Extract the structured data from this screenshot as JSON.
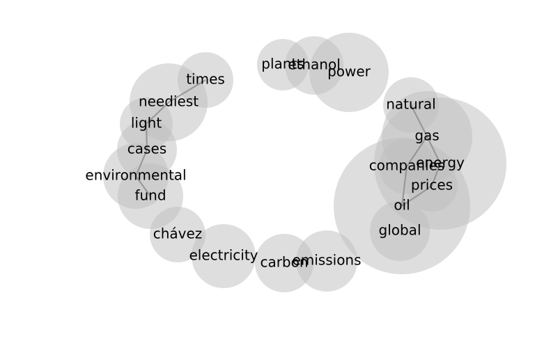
{
  "chart_data": {
    "type": "bubble-network",
    "nodes": [
      {
        "id": "n1",
        "label": "times"
      },
      {
        "id": "n2",
        "label": "neediest"
      },
      {
        "id": "n3",
        "label": "light"
      },
      {
        "id": "n4",
        "label": "cases"
      },
      {
        "id": "n5",
        "label": "environmental"
      },
      {
        "id": "n6",
        "label": "fund"
      },
      {
        "id": "n7",
        "label": "chávez"
      },
      {
        "id": "n8",
        "label": "electricity"
      },
      {
        "id": "n9",
        "label": "carbon"
      },
      {
        "id": "n10",
        "label": "emissions"
      },
      {
        "id": "n11",
        "label": "plants"
      },
      {
        "id": "n12",
        "label": "ethanol"
      },
      {
        "id": "n13",
        "label": "power"
      },
      {
        "id": "n14",
        "label": "natural"
      },
      {
        "id": "n15",
        "label": "gas"
      },
      {
        "id": "n16",
        "label": "energy"
      },
      {
        "id": "n17",
        "label": "companies"
      },
      {
        "id": "n18",
        "label": "prices"
      },
      {
        "id": "n19",
        "label": "oil"
      },
      {
        "id": "n20",
        "label": "global"
      }
    ],
    "edges": [
      [
        "n1",
        "n2"
      ],
      [
        "n2",
        "n3"
      ],
      [
        "n3",
        "n4"
      ],
      [
        "n4",
        "n5"
      ],
      [
        "n5",
        "n6"
      ],
      [
        "n14",
        "n15"
      ],
      [
        "n15",
        "n16"
      ],
      [
        "n15",
        "n17"
      ],
      [
        "n16",
        "n18"
      ],
      [
        "n17",
        "n19"
      ],
      [
        "n18",
        "n19"
      ]
    ]
  }
}
